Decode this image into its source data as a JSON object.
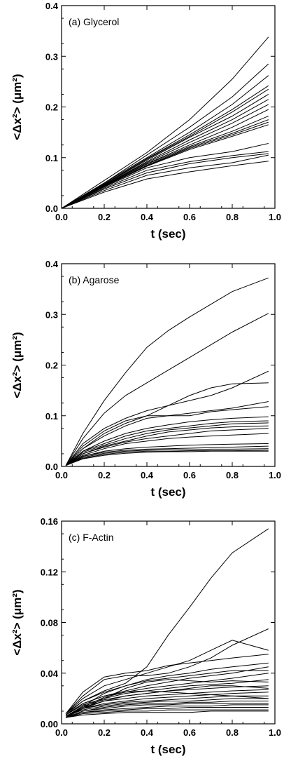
{
  "chart_data": [
    {
      "type": "line",
      "title": "(a) Glycerol",
      "xlabel": "t (sec)",
      "ylabel": "<Δx²> (μm²)",
      "xlim": [
        0,
        1.0
      ],
      "ylim": [
        0,
        0.4
      ],
      "xticks": [
        "0.0",
        "0.2",
        "0.4",
        "0.6",
        "0.8",
        "1.0"
      ],
      "yticks": [
        "0.0",
        "0.1",
        "0.2",
        "0.3",
        "0.4"
      ],
      "x": [
        0.0,
        0.2,
        0.4,
        0.6,
        0.8,
        0.97
      ],
      "series": [
        {
          "values": [
            0,
            0.055,
            0.11,
            0.175,
            0.255,
            0.338
          ]
        },
        {
          "values": [
            0,
            0.05,
            0.105,
            0.16,
            0.22,
            0.285
          ]
        },
        {
          "values": [
            0,
            0.05,
            0.1,
            0.15,
            0.205,
            0.262
          ]
        },
        {
          "values": [
            0,
            0.048,
            0.098,
            0.145,
            0.195,
            0.242
          ]
        },
        {
          "values": [
            0,
            0.048,
            0.097,
            0.142,
            0.19,
            0.235
          ]
        },
        {
          "values": [
            0,
            0.047,
            0.095,
            0.14,
            0.182,
            0.225
          ]
        },
        {
          "values": [
            0,
            0.046,
            0.092,
            0.135,
            0.175,
            0.215
          ]
        },
        {
          "values": [
            0,
            0.046,
            0.09,
            0.13,
            0.168,
            0.205
          ]
        },
        {
          "values": [
            0,
            0.045,
            0.088,
            0.125,
            0.16,
            0.195
          ]
        },
        {
          "values": [
            0,
            0.045,
            0.087,
            0.122,
            0.152,
            0.182
          ]
        },
        {
          "values": [
            0,
            0.044,
            0.085,
            0.12,
            0.148,
            0.175
          ]
        },
        {
          "values": [
            0,
            0.044,
            0.084,
            0.118,
            0.145,
            0.17
          ]
        },
        {
          "values": [
            0,
            0.043,
            0.083,
            0.116,
            0.142,
            0.165
          ]
        },
        {
          "values": [
            0,
            0.042,
            0.08,
            0.1,
            0.112,
            0.128
          ]
        },
        {
          "values": [
            0,
            0.04,
            0.075,
            0.092,
            0.104,
            0.112
          ]
        },
        {
          "values": [
            0,
            0.038,
            0.07,
            0.088,
            0.1,
            0.108
          ]
        },
        {
          "values": [
            0,
            0.035,
            0.065,
            0.08,
            0.09,
            0.105
          ]
        },
        {
          "values": [
            0,
            0.032,
            0.058,
            0.072,
            0.084,
            0.093
          ]
        }
      ]
    },
    {
      "type": "line",
      "title": "(b) Agarose",
      "xlabel": "t (sec)",
      "ylabel": "<Δx²> (μm²)",
      "xlim": [
        0,
        1.0
      ],
      "ylim": [
        0,
        0.4
      ],
      "xticks": [
        "0.0",
        "0.2",
        "0.4",
        "0.6",
        "0.8",
        "1.0"
      ],
      "yticks": [
        "0.0",
        "0.1",
        "0.2",
        "0.3",
        "0.4"
      ],
      "x": [
        0.02,
        0.1,
        0.2,
        0.3,
        0.4,
        0.5,
        0.6,
        0.7,
        0.8,
        0.97
      ],
      "series": [
        {
          "values": [
            0.002,
            0.065,
            0.13,
            0.185,
            0.235,
            0.268,
            0.295,
            0.32,
            0.345,
            0.372
          ]
        },
        {
          "values": [
            0.002,
            0.055,
            0.105,
            0.14,
            0.165,
            0.19,
            0.215,
            0.24,
            0.265,
            0.302
          ]
        },
        {
          "values": [
            0.002,
            0.045,
            0.075,
            0.095,
            0.11,
            0.12,
            0.13,
            0.14,
            0.155,
            0.188
          ]
        },
        {
          "values": [
            0.002,
            0.04,
            0.07,
            0.09,
            0.1,
            0.12,
            0.14,
            0.155,
            0.163,
            0.165
          ]
        },
        {
          "values": [
            0.002,
            0.035,
            0.06,
            0.08,
            0.095,
            0.1,
            0.105,
            0.11,
            0.115,
            0.128
          ]
        },
        {
          "values": [
            0.002,
            0.035,
            0.065,
            0.085,
            0.1,
            0.1,
            0.1,
            0.108,
            0.112,
            0.118
          ]
        },
        {
          "values": [
            0.002,
            0.03,
            0.05,
            0.065,
            0.075,
            0.082,
            0.088,
            0.092,
            0.095,
            0.098
          ]
        },
        {
          "values": [
            0.002,
            0.03,
            0.045,
            0.06,
            0.07,
            0.075,
            0.08,
            0.085,
            0.088,
            0.09
          ]
        },
        {
          "values": [
            0.002,
            0.028,
            0.042,
            0.055,
            0.065,
            0.072,
            0.076,
            0.08,
            0.084,
            0.086
          ]
        },
        {
          "values": [
            0.002,
            0.025,
            0.04,
            0.05,
            0.06,
            0.068,
            0.072,
            0.076,
            0.078,
            0.08
          ]
        },
        {
          "values": [
            0.002,
            0.025,
            0.038,
            0.048,
            0.055,
            0.06,
            0.065,
            0.07,
            0.072,
            0.075
          ]
        },
        {
          "values": [
            0.002,
            0.022,
            0.035,
            0.045,
            0.05,
            0.055,
            0.058,
            0.06,
            0.062,
            0.065
          ]
        },
        {
          "values": [
            0.002,
            0.02,
            0.03,
            0.035,
            0.038,
            0.04,
            0.042,
            0.043,
            0.044,
            0.045
          ]
        },
        {
          "values": [
            0.002,
            0.02,
            0.028,
            0.032,
            0.034,
            0.035,
            0.036,
            0.037,
            0.038,
            0.04
          ]
        },
        {
          "values": [
            0.002,
            0.018,
            0.026,
            0.03,
            0.032,
            0.033,
            0.033,
            0.034,
            0.034,
            0.035
          ]
        },
        {
          "values": [
            0.002,
            0.016,
            0.024,
            0.028,
            0.03,
            0.03,
            0.031,
            0.031,
            0.031,
            0.032
          ]
        },
        {
          "values": [
            0.002,
            0.015,
            0.022,
            0.026,
            0.028,
            0.029,
            0.029,
            0.03,
            0.03,
            0.03
          ]
        }
      ]
    },
    {
      "type": "line",
      "title": "(c) F-Actin",
      "xlabel": "t (sec)",
      "ylabel": "<Δx²> (μm²)",
      "xlim": [
        0,
        1.0
      ],
      "ylim": [
        0,
        0.16
      ],
      "yticks_values": [
        0,
        0.04,
        0.08,
        0.12,
        0.16
      ],
      "xticks": [
        "0.0",
        "0.2",
        "0.4",
        "0.6",
        "0.8",
        "1.0"
      ],
      "yticks": [
        "0.00",
        "0.04",
        "0.08",
        "0.12",
        "0.16"
      ],
      "x": [
        0.02,
        0.1,
        0.2,
        0.3,
        0.4,
        0.5,
        0.6,
        0.7,
        0.8,
        0.97
      ],
      "series": [
        {
          "values": [
            0.008,
            0.018,
            0.026,
            0.032,
            0.045,
            0.07,
            0.092,
            0.115,
            0.135,
            0.154
          ]
        },
        {
          "values": [
            0.008,
            0.022,
            0.035,
            0.038,
            0.038,
            0.04,
            0.045,
            0.052,
            0.062,
            0.075
          ]
        },
        {
          "values": [
            0.008,
            0.02,
            0.03,
            0.035,
            0.04,
            0.045,
            0.05,
            0.058,
            0.066,
            0.058
          ]
        },
        {
          "values": [
            0.008,
            0.025,
            0.037,
            0.04,
            0.042,
            0.046,
            0.048,
            0.05,
            0.052,
            0.055
          ]
        },
        {
          "values": [
            0.007,
            0.018,
            0.025,
            0.03,
            0.035,
            0.038,
            0.04,
            0.043,
            0.045,
            0.048
          ]
        },
        {
          "values": [
            0.007,
            0.016,
            0.022,
            0.026,
            0.03,
            0.033,
            0.036,
            0.038,
            0.04,
            0.045
          ]
        },
        {
          "values": [
            0.007,
            0.016,
            0.022,
            0.025,
            0.028,
            0.03,
            0.032,
            0.034,
            0.036,
            0.04
          ]
        },
        {
          "values": [
            0.007,
            0.015,
            0.02,
            0.024,
            0.026,
            0.028,
            0.03,
            0.031,
            0.032,
            0.035
          ]
        },
        {
          "values": [
            0.006,
            0.014,
            0.019,
            0.022,
            0.024,
            0.026,
            0.027,
            0.028,
            0.029,
            0.03
          ]
        },
        {
          "values": [
            0.006,
            0.013,
            0.018,
            0.02,
            0.022,
            0.023,
            0.024,
            0.025,
            0.026,
            0.027
          ]
        },
        {
          "values": [
            0.006,
            0.012,
            0.016,
            0.018,
            0.02,
            0.021,
            0.022,
            0.023,
            0.024,
            0.025
          ]
        },
        {
          "values": [
            0.006,
            0.012,
            0.015,
            0.017,
            0.018,
            0.019,
            0.02,
            0.021,
            0.022,
            0.022
          ]
        },
        {
          "values": [
            0.006,
            0.011,
            0.014,
            0.016,
            0.017,
            0.018,
            0.018,
            0.019,
            0.02,
            0.02
          ]
        },
        {
          "values": [
            0.005,
            0.01,
            0.013,
            0.015,
            0.016,
            0.016,
            0.017,
            0.017,
            0.018,
            0.018
          ]
        },
        {
          "values": [
            0.005,
            0.01,
            0.012,
            0.014,
            0.015,
            0.015,
            0.016,
            0.016,
            0.016,
            0.016
          ]
        },
        {
          "values": [
            0.005,
            0.009,
            0.011,
            0.012,
            0.013,
            0.014,
            0.014,
            0.014,
            0.015,
            0.015
          ]
        },
        {
          "values": [
            0.005,
            0.009,
            0.01,
            0.011,
            0.012,
            0.012,
            0.013,
            0.013,
            0.013,
            0.013
          ]
        },
        {
          "values": [
            0.005,
            0.008,
            0.009,
            0.01,
            0.01,
            0.011,
            0.011,
            0.011,
            0.011,
            0.011
          ]
        },
        {
          "values": [
            0.005,
            0.007,
            0.008,
            0.009,
            0.009,
            0.009,
            0.009,
            0.01,
            0.01,
            0.01
          ]
        },
        {
          "values": [
            0.005,
            0.012,
            0.02,
            0.028,
            0.033,
            0.035,
            0.034,
            0.033,
            0.034,
            0.033
          ]
        },
        {
          "values": [
            0.005,
            0.014,
            0.024,
            0.03,
            0.034,
            0.036,
            0.038,
            0.04,
            0.042,
            0.042
          ]
        },
        {
          "values": [
            0.005,
            0.013,
            0.021,
            0.025,
            0.026,
            0.025,
            0.024,
            0.023,
            0.022,
            0.02
          ]
        },
        {
          "values": [
            0.005,
            0.012,
            0.018,
            0.022,
            0.024,
            0.026,
            0.028,
            0.03,
            0.03,
            0.028
          ]
        }
      ]
    }
  ]
}
